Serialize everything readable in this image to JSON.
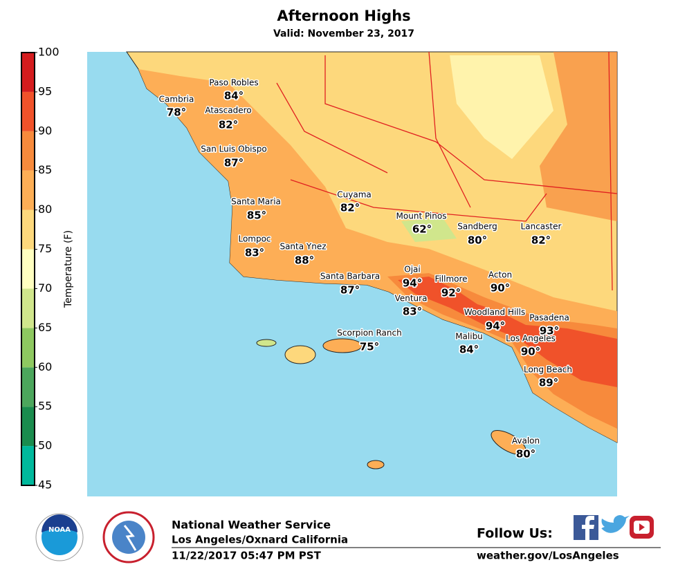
{
  "title": "Afternoon Highs",
  "subtitle": "Valid: November 23, 2017",
  "colorbar": {
    "label": "Temperature (F)",
    "ticks": [
      45,
      50,
      55,
      60,
      65,
      70,
      75,
      80,
      85,
      90,
      95,
      100
    ],
    "colors": [
      "#00b89c",
      "#1a8c4e",
      "#4ca65c",
      "#8ec860",
      "#d0e68c",
      "#ffffc0",
      "#fdd87c",
      "#fdae56",
      "#f78a3c",
      "#f0522a",
      "#d41c1e"
    ]
  },
  "cities": [
    {
      "name": "Paso Robles",
      "temp": "84°"
    },
    {
      "name": "Cambria",
      "temp": "78°"
    },
    {
      "name": "Atascadero",
      "temp": "82°"
    },
    {
      "name": "San Luis Obispo",
      "temp": "87°"
    },
    {
      "name": "Cuyama",
      "temp": "82°"
    },
    {
      "name": "Santa Maria",
      "temp": "85°"
    },
    {
      "name": "Mount Pinos",
      "temp": "62°"
    },
    {
      "name": "Sandberg",
      "temp": "80°"
    },
    {
      "name": "Lancaster",
      "temp": "82°"
    },
    {
      "name": "Lompoc",
      "temp": "83°"
    },
    {
      "name": "Santa Ynez",
      "temp": "88°"
    },
    {
      "name": "Ojai",
      "temp": "94°"
    },
    {
      "name": "Santa Barbara",
      "temp": "87°"
    },
    {
      "name": "Fillmore",
      "temp": "92°"
    },
    {
      "name": "Acton",
      "temp": "90°"
    },
    {
      "name": "Ventura",
      "temp": "83°"
    },
    {
      "name": "Woodland Hills",
      "temp": "94°"
    },
    {
      "name": "Pasadena",
      "temp": "93°"
    },
    {
      "name": "Scorpion Ranch",
      "temp": "75°"
    },
    {
      "name": "Malibu",
      "temp": "84°"
    },
    {
      "name": "Los Angeles",
      "temp": "90°"
    },
    {
      "name": "Long Beach",
      "temp": "89°"
    },
    {
      "name": "Avalon",
      "temp": "80°"
    }
  ],
  "footer": {
    "logo": "NOAA",
    "org": "National Weather Service",
    "office": "Los Angeles/Oxnard California",
    "issued": "11/22/2017 05:47 PM PST",
    "follow": "Follow Us:",
    "url": "weather.gov/LosAngeles"
  }
}
